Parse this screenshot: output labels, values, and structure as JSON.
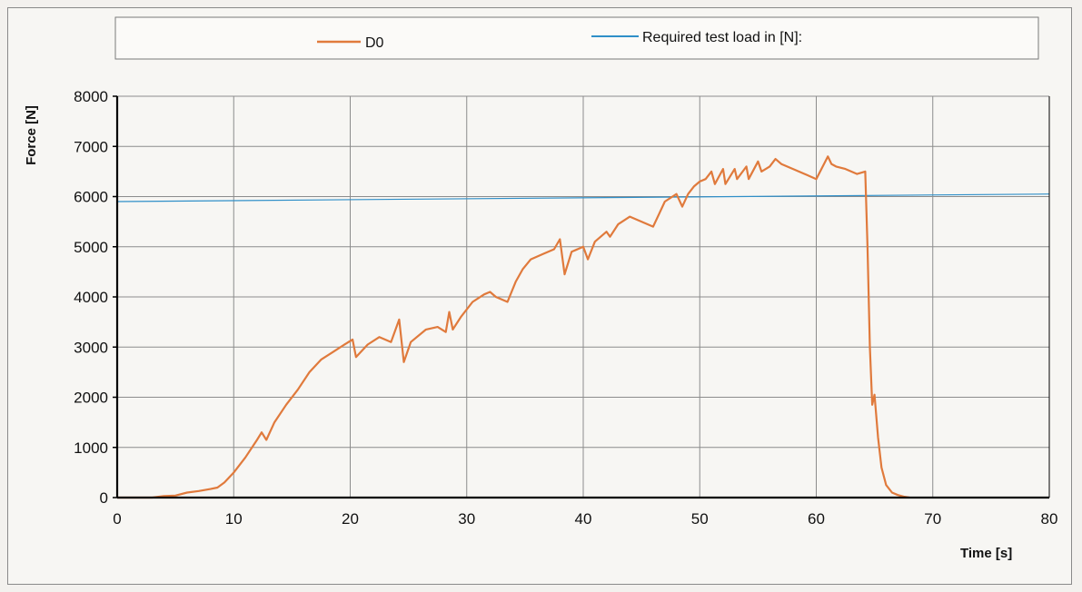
{
  "chart_data": {
    "type": "line",
    "xlabel": "Time [s]",
    "ylabel": "Force [N]",
    "xlim": [
      0,
      80
    ],
    "ylim": [
      0,
      8000
    ],
    "x_ticks": [
      0,
      10,
      20,
      30,
      40,
      50,
      60,
      70,
      80
    ],
    "y_ticks": [
      0,
      1000,
      2000,
      3000,
      4000,
      5000,
      6000,
      7000,
      8000
    ],
    "grid": true,
    "legend_position": "top",
    "series": [
      {
        "name": "D0",
        "color": "#e07a3c",
        "x": [
          0,
          3,
          4,
          5,
          6,
          7,
          8,
          8.6,
          9.2,
          10,
          11,
          12,
          12.4,
          12.8,
          13.5,
          14.5,
          15.5,
          16.5,
          17.5,
          18.5,
          19.5,
          20.2,
          20.5,
          21.5,
          22.5,
          23.5,
          24.2,
          24.6,
          25.2,
          26.5,
          27.5,
          28.2,
          28.5,
          28.8,
          29.5,
          30.5,
          31.5,
          32,
          32.5,
          33.5,
          34.2,
          34.8,
          35.5,
          36.5,
          37.5,
          38,
          38.4,
          39,
          40,
          40.4,
          41,
          42,
          42.3,
          43,
          44,
          44.5,
          45,
          46,
          46.5,
          47,
          48,
          48.5,
          49,
          49.5,
          50,
          50.5,
          51,
          51.3,
          52,
          52.2,
          53,
          53.2,
          54,
          54.2,
          55,
          55.3,
          56,
          56.5,
          57,
          58,
          59,
          60,
          61,
          61.3,
          61.7,
          62.5,
          63.5,
          64.2,
          64.4,
          64.6,
          64.8,
          65,
          65.3,
          65.6,
          66,
          66.5,
          67,
          67.5,
          68
        ],
        "y": [
          0,
          0,
          30,
          40,
          100,
          130,
          170,
          200,
          300,
          500,
          800,
          1150,
          1300,
          1150,
          1500,
          1850,
          2150,
          2500,
          2750,
          2900,
          3050,
          3150,
          2800,
          3050,
          3200,
          3100,
          3550,
          2700,
          3100,
          3350,
          3400,
          3300,
          3700,
          3350,
          3600,
          3900,
          4050,
          4100,
          4000,
          3900,
          4300,
          4550,
          4750,
          4850,
          4950,
          5150,
          4450,
          4900,
          5000,
          4750,
          5100,
          5300,
          5200,
          5450,
          5600,
          5550,
          5500,
          5400,
          5650,
          5900,
          6050,
          5800,
          6050,
          6200,
          6300,
          6350,
          6500,
          6250,
          6550,
          6250,
          6550,
          6350,
          6600,
          6350,
          6700,
          6500,
          6600,
          6750,
          6650,
          6550,
          6450,
          6350,
          6800,
          6650,
          6600,
          6550,
          6450,
          6500,
          5000,
          3000,
          1850,
          2050,
          1200,
          600,
          250,
          100,
          50,
          20,
          0
        ]
      },
      {
        "name": "Required test load in [N]:",
        "color": "#2f8fc8",
        "x": [
          0,
          80
        ],
        "y": [
          5900,
          6050
        ]
      }
    ]
  }
}
